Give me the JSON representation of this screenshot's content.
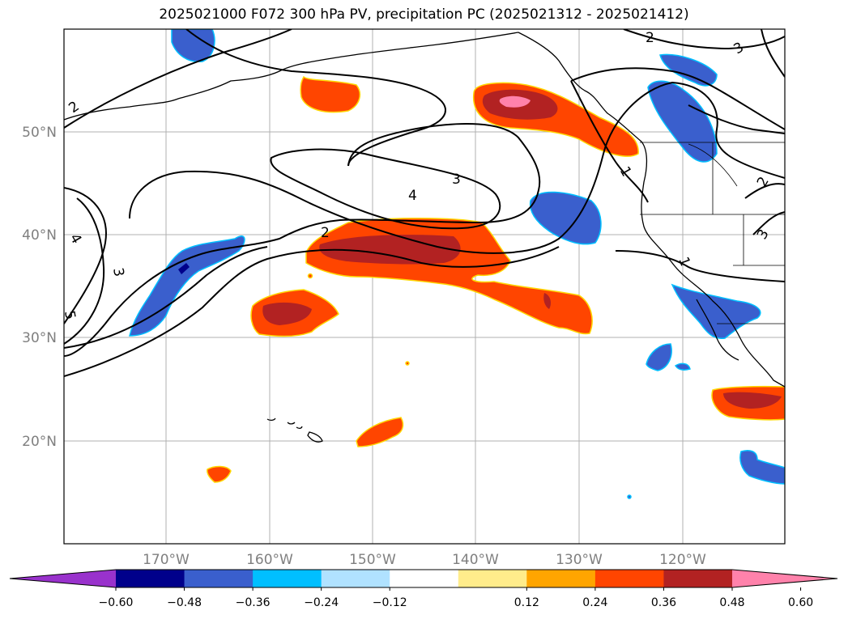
{
  "title": "2025021000 F072 300 hPa PV, precipitation PC (2025021312 - 2025021412)",
  "latitude_labels": [
    "50°N",
    "40°N",
    "30°N",
    "20°N"
  ],
  "longitude_labels": [
    "170°W",
    "160°W",
    "150°W",
    "140°W",
    "130°W",
    "120°W"
  ],
  "pv_contour_labels": [
    "2",
    "3",
    "4",
    "2",
    "3",
    "4",
    "5",
    "2",
    "3",
    "1",
    "1",
    "2",
    "3"
  ],
  "colorbar": {
    "tick_labels": [
      "−0.60",
      "−0.48",
      "−0.36",
      "−0.24",
      "−0.12",
      "0.12",
      "0.24",
      "0.36",
      "0.48",
      "0.60"
    ],
    "colors": [
      "#9932cc",
      "#00008b",
      "#3a5fcd",
      "#00bfff",
      "#b0e2ff",
      "#ffffff",
      "#ffec8b",
      "#ffa500",
      "#ff4500",
      "#b22222",
      "#ff82ab"
    ]
  }
}
